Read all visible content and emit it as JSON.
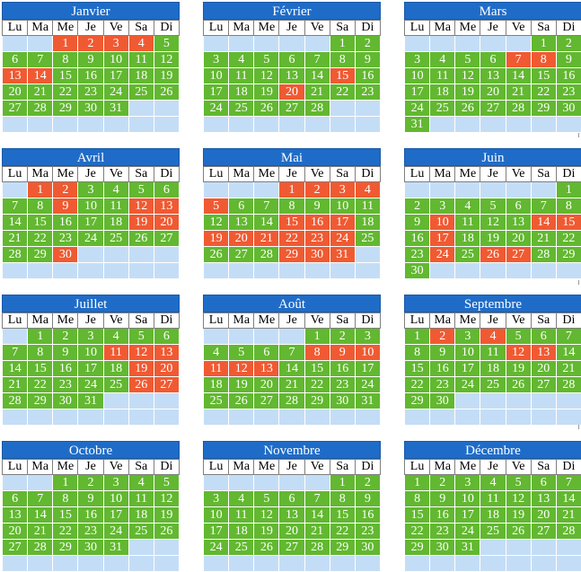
{
  "weekdays": [
    "Lu",
    "Ma",
    "Me",
    "Je",
    "Ve",
    "Sa",
    "Di"
  ],
  "colors": {
    "green": "#62b830",
    "red": "#f05a32",
    "empty": "#c4ddf6",
    "header": "#1f6cc8"
  },
  "months": [
    {
      "name": "Janvier",
      "offset": 2,
      "days": 31,
      "red": [
        1,
        2,
        3,
        4,
        13,
        14
      ]
    },
    {
      "name": "Février",
      "offset": 5,
      "days": 28,
      "red": [
        15,
        20
      ]
    },
    {
      "name": "Mars",
      "offset": 5,
      "days": 31,
      "red": [
        7,
        8
      ]
    },
    {
      "name": "Avril",
      "offset": 1,
      "days": 30,
      "red": [
        1,
        2,
        9,
        12,
        13,
        19,
        20,
        30
      ]
    },
    {
      "name": "Mai",
      "offset": 3,
      "days": 31,
      "red": [
        1,
        2,
        3,
        4,
        5,
        15,
        16,
        17,
        19,
        20,
        21,
        22,
        23,
        24,
        29,
        30,
        31
      ]
    },
    {
      "name": "Juin",
      "offset": 6,
      "days": 30,
      "red": [
        10,
        14,
        15,
        17,
        24,
        26,
        27
      ]
    },
    {
      "name": "Juillet",
      "offset": 1,
      "days": 31,
      "red": [
        11,
        12,
        13,
        19,
        20,
        26,
        27
      ]
    },
    {
      "name": "Août",
      "offset": 4,
      "days": 31,
      "red": [
        8,
        9,
        10,
        11,
        12,
        13
      ]
    },
    {
      "name": "Septembre",
      "offset": 0,
      "days": 30,
      "red": [
        2,
        4,
        12,
        13
      ]
    },
    {
      "name": "Octobre",
      "offset": 2,
      "days": 31,
      "red": []
    },
    {
      "name": "Novembre",
      "offset": 5,
      "days": 30,
      "red": []
    },
    {
      "name": "Décembre",
      "offset": 0,
      "days": 31,
      "red": []
    }
  ]
}
